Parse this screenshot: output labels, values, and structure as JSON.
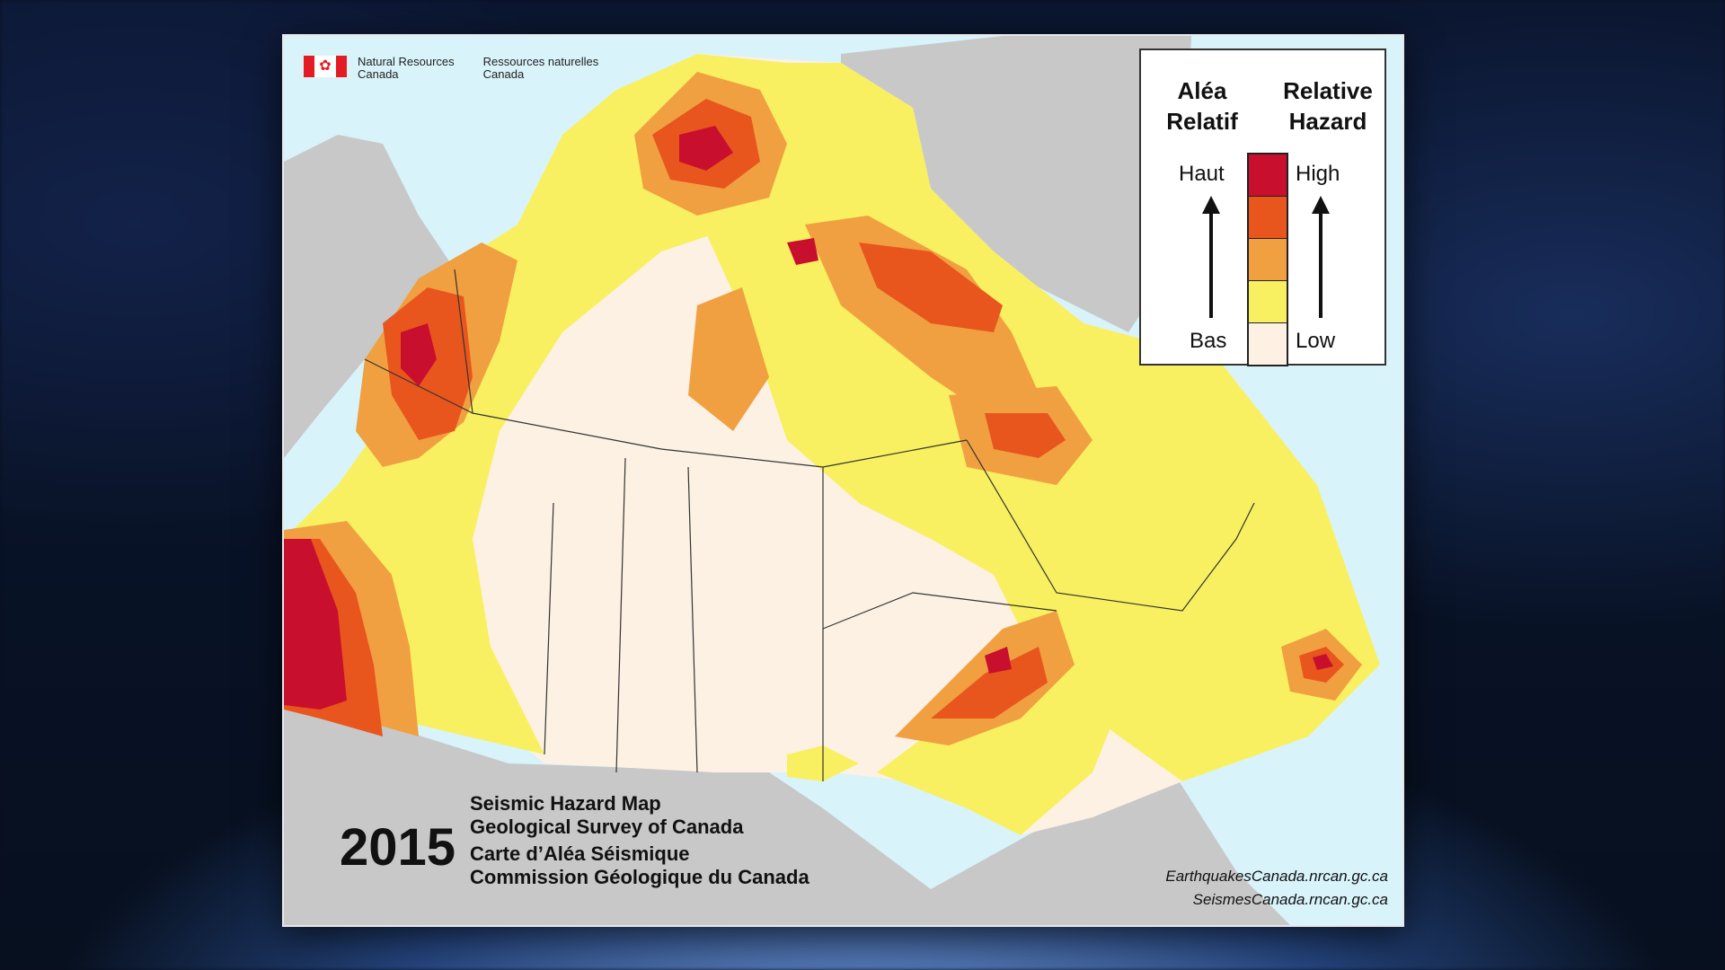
{
  "header": {
    "dept_en_line1": "Natural Resources",
    "dept_en_line2": "Canada",
    "dept_fr_line1": "Ressources naturelles",
    "dept_fr_line2": "Canada",
    "flag_icon": "canada-flag-icon"
  },
  "legend": {
    "title_fr_line1": "Aléa",
    "title_fr_line2": "Relatif",
    "title_en_line1": "Relative",
    "title_en_line2": "Hazard",
    "high_fr": "Haut",
    "low_fr": "Bas",
    "high_en": "High",
    "low_en": "Low",
    "levels": [
      {
        "level": "high",
        "color": "#c8102e"
      },
      {
        "level": "moderate-high",
        "color": "#e8561e"
      },
      {
        "level": "moderate",
        "color": "#f0a040"
      },
      {
        "level": "low-moderate",
        "color": "#f8f060"
      },
      {
        "level": "low",
        "color": "#fdf1e4"
      }
    ]
  },
  "title": {
    "year": "2015",
    "en_line1": "Seismic Hazard Map",
    "en_line2": "Geological Survey of Canada",
    "fr_line1": "Carte d’Aléa Séismique",
    "fr_line2": "Commission Géologique du Canada"
  },
  "links": {
    "en": "EarthquakesCanada.nrcan.gc.ca",
    "fr": "SeismesCanada.rncan.gc.ca"
  },
  "colors": {
    "ocean": "#d8f3fa",
    "foreign_land": "#c8c8c8",
    "very_high": "#c8102e",
    "high": "#e8561e",
    "moderate": "#f0a040",
    "low_moderate": "#f8f060",
    "low": "#fdf1e4"
  }
}
